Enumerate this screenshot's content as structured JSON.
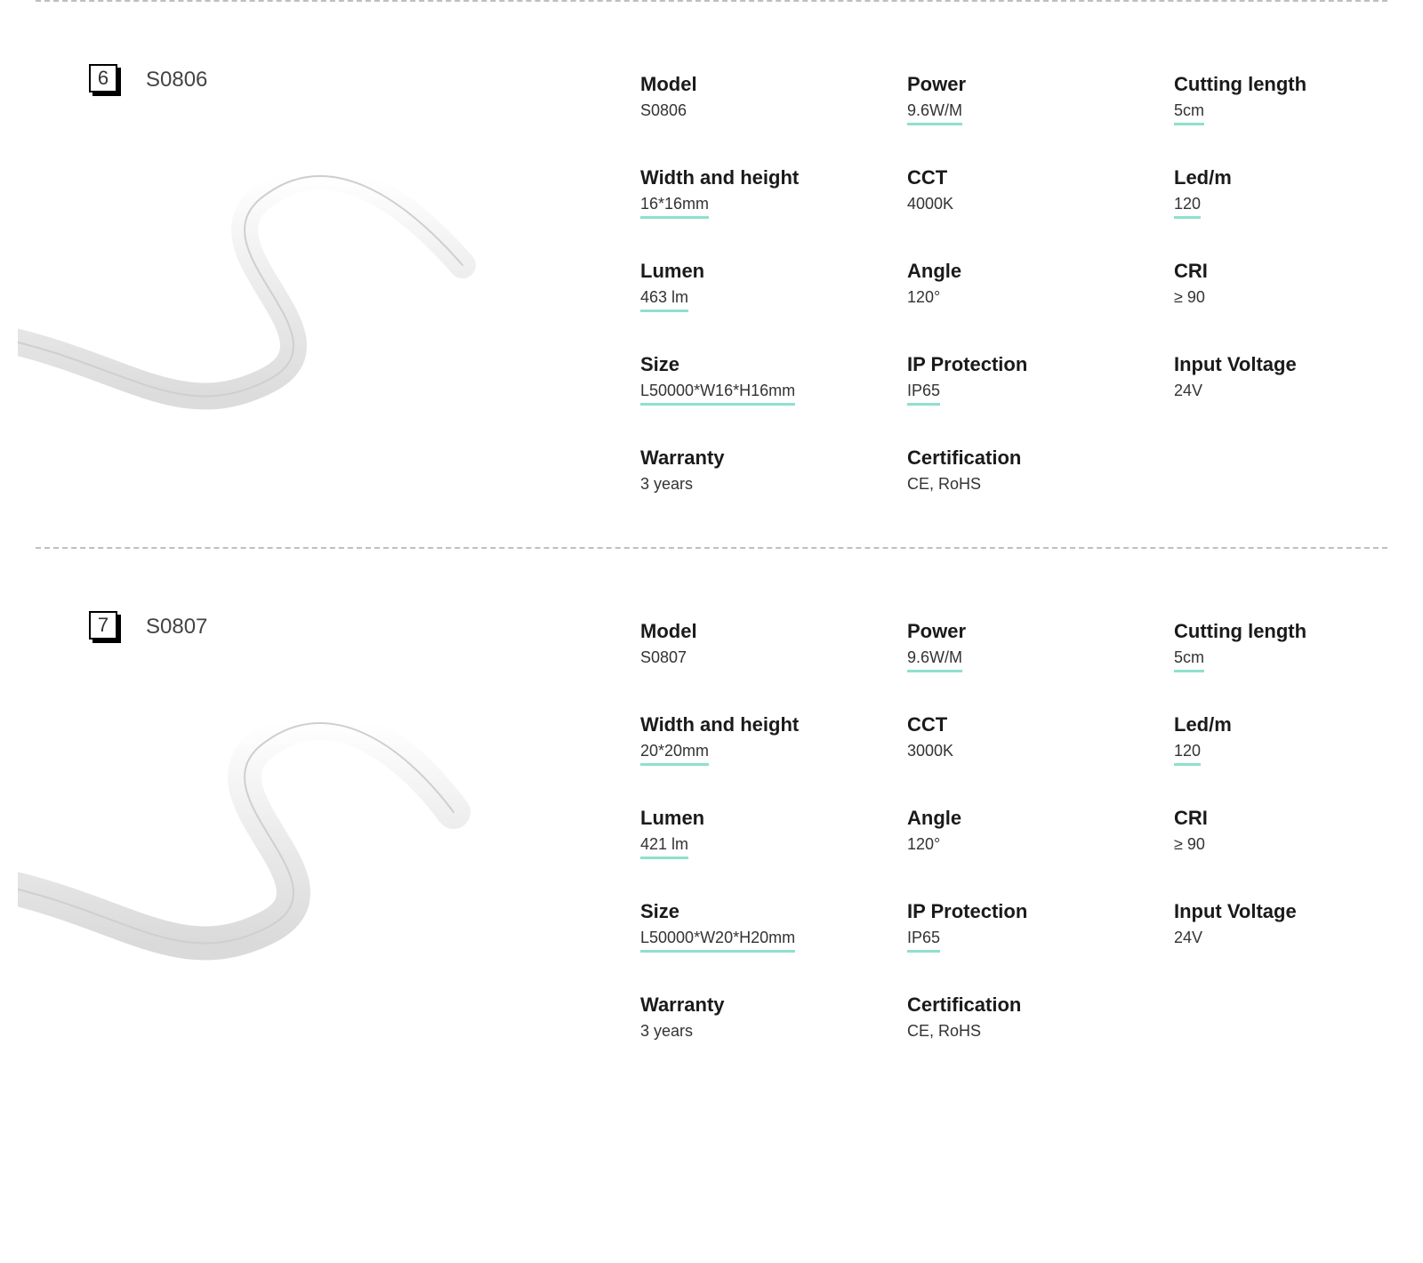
{
  "colors": {
    "underline": "#8fe0cc",
    "divider": "#bfbfbf",
    "text": "#1a1a1a",
    "value_text": "#333333"
  },
  "products": [
    {
      "index": "6",
      "title": "S0806",
      "specs": {
        "model": {
          "label": "Model",
          "value": "S0806",
          "underlined": false
        },
        "power": {
          "label": "Power",
          "value": "9.6W/M",
          "underlined": true
        },
        "cutting_length": {
          "label": "Cutting length",
          "value": "5cm",
          "underlined": true
        },
        "width_height": {
          "label": "Width and height",
          "value": "16*16mm",
          "underlined": true
        },
        "cct": {
          "label": "CCT",
          "value": "4000K",
          "underlined": false
        },
        "led_m": {
          "label": "Led/m",
          "value": "120",
          "underlined": true
        },
        "lumen": {
          "label": "Lumen",
          "value": "463 lm",
          "underlined": true
        },
        "angle": {
          "label": "Angle",
          "value": "120°",
          "underlined": false
        },
        "cri": {
          "label": "CRI",
          "value": "≥ 90",
          "underlined": false
        },
        "size": {
          "label": "Size",
          "value": "L50000*W16*H16mm",
          "underlined": true
        },
        "ip": {
          "label": "IP Protection",
          "value": "IP65",
          "underlined": true
        },
        "input_voltage": {
          "label": "Input Voltage",
          "value": "24V",
          "underlined": false
        },
        "warranty": {
          "label": "Warranty",
          "value": "3 years",
          "underlined": false
        },
        "certification": {
          "label": "Certification",
          "value": "CE, RoHS",
          "underlined": false
        }
      }
    },
    {
      "index": "7",
      "title": "S0807",
      "specs": {
        "model": {
          "label": "Model",
          "value": "S0807",
          "underlined": false
        },
        "power": {
          "label": "Power",
          "value": "9.6W/M",
          "underlined": true
        },
        "cutting_length": {
          "label": "Cutting length",
          "value": "5cm",
          "underlined": true
        },
        "width_height": {
          "label": "Width and height",
          "value": "20*20mm",
          "underlined": true
        },
        "cct": {
          "label": "CCT",
          "value": "3000K",
          "underlined": false
        },
        "led_m": {
          "label": "Led/m",
          "value": "120",
          "underlined": true
        },
        "lumen": {
          "label": "Lumen",
          "value": "421 lm",
          "underlined": true
        },
        "angle": {
          "label": "Angle",
          "value": "120°",
          "underlined": false
        },
        "cri": {
          "label": "CRI",
          "value": "≥ 90",
          "underlined": false
        },
        "size": {
          "label": "Size",
          "value": "L50000*W20*H20mm",
          "underlined": true
        },
        "ip": {
          "label": "IP Protection",
          "value": "IP65",
          "underlined": true
        },
        "input_voltage": {
          "label": "Input Voltage",
          "value": "24V",
          "underlined": false
        },
        "warranty": {
          "label": "Warranty",
          "value": "3 years",
          "underlined": false
        },
        "certification": {
          "label": "Certification",
          "value": "CE, RoHS",
          "underlined": false
        }
      }
    }
  ],
  "spec_order": [
    "model",
    "power",
    "cutting_length",
    "width_height",
    "cct",
    "led_m",
    "lumen",
    "angle",
    "cri",
    "size",
    "ip",
    "input_voltage",
    "warranty",
    "certification"
  ]
}
